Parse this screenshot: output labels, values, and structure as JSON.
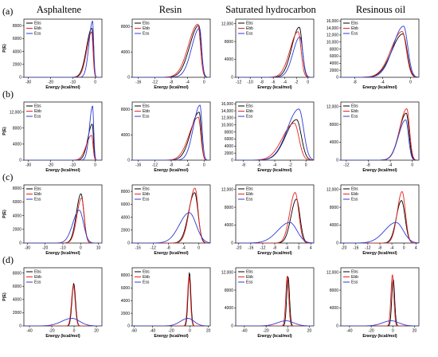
{
  "figure": {
    "column_titles": [
      "Asphaltene",
      "Resin",
      "Saturated hydrocarbon",
      "Resinous oil"
    ],
    "row_labels": [
      "(a)",
      "(b)",
      "(c)",
      "(d)"
    ]
  },
  "chart_data": [
    {
      "type": "line",
      "panel": "a1",
      "xlabel": "Energy (kcal/mol)",
      "ylabel": "P(E)",
      "xticks": [
        -30,
        -20,
        -10,
        0
      ],
      "yticks": [
        0,
        2000,
        4000,
        6000,
        8000
      ],
      "xlim": [
        -32,
        3
      ],
      "ylim": [
        0,
        9000
      ],
      "legend": [
        "Ebs",
        "Ebb",
        "Ess"
      ],
      "colors": [
        "#000000",
        "#e8231e",
        "#2d3bd6"
      ],
      "series": [
        {
          "name": "Ebs",
          "peak_x": -1.5,
          "peak_y": 7600,
          "width_left": 2.4,
          "width_right": 0.6
        },
        {
          "name": "Ebb",
          "peak_x": -1.6,
          "peak_y": 7000,
          "width_left": 2.2,
          "width_right": 0.6
        },
        {
          "name": "Ess",
          "peak_x": -1.2,
          "peak_y": 8700,
          "width_left": 1.6,
          "width_right": 0.5
        }
      ]
    },
    {
      "type": "line",
      "panel": "a2",
      "xlabel": "Energy (kcal/mol)",
      "ylabel": "",
      "xticks": [
        -16,
        -12,
        -8,
        -4,
        0
      ],
      "yticks": [
        0,
        4000,
        8000
      ],
      "xlim": [
        -17.5,
        1.5
      ],
      "ylim": [
        0,
        9200
      ],
      "legend": [
        "Ebs",
        "Ebb",
        "Ess"
      ],
      "colors": [
        "#000000",
        "#e8231e",
        "#2d3bd6"
      ],
      "series": [
        {
          "name": "Ebs",
          "peak_x": -1.3,
          "peak_y": 8200,
          "width_left": 2.2,
          "width_right": 0.6
        },
        {
          "name": "Ebb",
          "peak_x": -1.5,
          "peak_y": 8400,
          "width_left": 2.3,
          "width_right": 0.6
        },
        {
          "name": "Ess",
          "peak_x": -1.1,
          "peak_y": 7800,
          "width_left": 1.9,
          "width_right": 0.5
        }
      ]
    },
    {
      "type": "line",
      "panel": "a3",
      "xlabel": "Energy (kcal/mol)",
      "ylabel": "",
      "xticks": [
        -12,
        -10,
        -8,
        -6,
        -4,
        -2,
        0
      ],
      "yticks": [
        0,
        4000,
        8000,
        12000
      ],
      "xlim": [
        -12.5,
        1
      ],
      "ylim": [
        0,
        13000
      ],
      "legend": [
        "Ebs",
        "Ebb",
        "Ess"
      ],
      "colors": [
        "#000000",
        "#e8231e",
        "#2d3bd6"
      ],
      "series": [
        {
          "name": "Ebs",
          "peak_x": -1.5,
          "peak_y": 11200,
          "width_left": 1.3,
          "width_right": 0.5
        },
        {
          "name": "Ebb",
          "peak_x": -1.7,
          "peak_y": 10200,
          "width_left": 1.4,
          "width_right": 0.5
        },
        {
          "name": "Ess",
          "peak_x": -1.4,
          "peak_y": 9000,
          "width_left": 1.2,
          "width_right": 0.5
        }
      ]
    },
    {
      "type": "line",
      "panel": "a4",
      "xlabel": "Energy (kcal/mol)",
      "ylabel": "",
      "xticks": [
        -8,
        -4,
        0
      ],
      "yticks": [
        0,
        2000,
        4000,
        6000,
        8000,
        10000,
        12000,
        14000,
        16000
      ],
      "xlim": [
        -10,
        1.2
      ],
      "ylim": [
        0,
        16500
      ],
      "legend": [
        "Ebs",
        "Ebb",
        "Ess"
      ],
      "colors": [
        "#000000",
        "#e8231e",
        "#2d3bd6"
      ],
      "series": [
        {
          "name": "Ebs",
          "peak_x": -1.1,
          "peak_y": 12300,
          "width_left": 1.6,
          "width_right": 0.6
        },
        {
          "name": "Ebb",
          "peak_x": -1.2,
          "peak_y": 13000,
          "width_left": 1.6,
          "width_right": 0.6
        },
        {
          "name": "Ess",
          "peak_x": -1.0,
          "peak_y": 14500,
          "width_left": 1.5,
          "width_right": 0.6
        }
      ]
    },
    {
      "type": "line",
      "panel": "b1",
      "xlabel": "Energy (kcal/mol)",
      "ylabel": "P(E)",
      "xticks": [
        -30,
        -20,
        -10,
        0
      ],
      "yticks": [
        0,
        4000,
        8000,
        12000
      ],
      "xlim": [
        -32,
        3
      ],
      "ylim": [
        0,
        14500
      ],
      "legend": [
        "Ebs",
        "Ebb",
        "Ess"
      ],
      "colors": [
        "#000000",
        "#e8231e",
        "#2d3bd6"
      ],
      "series": [
        {
          "name": "Ebs",
          "peak_x": -1.3,
          "peak_y": 9000,
          "width_left": 2.0,
          "width_right": 0.5
        },
        {
          "name": "Ebb",
          "peak_x": -1.6,
          "peak_y": 6200,
          "width_left": 2.4,
          "width_right": 0.6
        },
        {
          "name": "Ess",
          "peak_x": -1.2,
          "peak_y": 13500,
          "width_left": 1.4,
          "width_right": 0.5
        }
      ]
    },
    {
      "type": "line",
      "panel": "b2",
      "xlabel": "Energy (kcal/mol)",
      "ylabel": "",
      "xticks": [
        -16,
        -12,
        -8,
        -4,
        0
      ],
      "yticks": [
        0,
        4000,
        8000
      ],
      "xlim": [
        -17.5,
        1.5
      ],
      "ylim": [
        0,
        9200
      ],
      "legend": [
        "Ebs",
        "Ebb",
        "Ess"
      ],
      "colors": [
        "#000000",
        "#e8231e",
        "#2d3bd6"
      ],
      "series": [
        {
          "name": "Ebs",
          "peak_x": -1.2,
          "peak_y": 7600,
          "width_left": 2.0,
          "width_right": 0.5
        },
        {
          "name": "Ebb",
          "peak_x": -1.4,
          "peak_y": 6800,
          "width_left": 2.2,
          "width_right": 0.6
        },
        {
          "name": "Ess",
          "peak_x": -1.0,
          "peak_y": 8700,
          "width_left": 1.6,
          "width_right": 0.5
        }
      ]
    },
    {
      "type": "line",
      "panel": "b3",
      "xlabel": "Energy (kcal/mol)",
      "ylabel": "",
      "xticks": [
        -8,
        -6,
        -4,
        -2,
        0
      ],
      "yticks": [
        0,
        2000,
        4000,
        6000,
        8000,
        10000,
        12000,
        14000,
        16000
      ],
      "xlim": [
        -9,
        1
      ],
      "ylim": [
        0,
        16500
      ],
      "legend": [
        "Ebs",
        "Ebb",
        "Ess"
      ],
      "colors": [
        "#000000",
        "#e8231e",
        "#2d3bd6"
      ],
      "series": [
        {
          "name": "Ebs",
          "peak_x": -1.2,
          "peak_y": 11500,
          "width_left": 1.4,
          "width_right": 0.6
        },
        {
          "name": "Ebb",
          "peak_x": -1.5,
          "peak_y": 10500,
          "width_left": 1.5,
          "width_right": 0.6
        },
        {
          "name": "Ess",
          "peak_x": -0.9,
          "peak_y": 14500,
          "width_left": 1.5,
          "width_right": 0.6
        }
      ]
    },
    {
      "type": "line",
      "panel": "b4",
      "xlabel": "Energy (kcal/mol)",
      "ylabel": "",
      "xticks": [
        -12,
        -8,
        -4,
        0
      ],
      "yticks": [
        0,
        4000,
        8000,
        12000
      ],
      "xlim": [
        -13,
        1.2
      ],
      "ylim": [
        0,
        13000
      ],
      "legend": [
        "Ebs",
        "Ebb",
        "Ess"
      ],
      "colors": [
        "#000000",
        "#e8231e",
        "#2d3bd6"
      ],
      "series": [
        {
          "name": "Ebs",
          "peak_x": -1.1,
          "peak_y": 10500,
          "width_left": 1.3,
          "width_right": 0.5
        },
        {
          "name": "Ebb",
          "peak_x": -1.0,
          "peak_y": 11500,
          "width_left": 1.3,
          "width_right": 0.5
        },
        {
          "name": "Ess",
          "peak_x": -1.2,
          "peak_y": 9000,
          "width_left": 1.3,
          "width_right": 0.5
        }
      ]
    },
    {
      "type": "line",
      "panel": "c1",
      "xlabel": "Energy (kcal/mol)",
      "ylabel": "P(E)",
      "xticks": [
        -30,
        -20,
        -10,
        0,
        10
      ],
      "yticks": [
        0,
        2000,
        4000,
        6000,
        8000
      ],
      "xlim": [
        -32,
        12
      ],
      "ylim": [
        0,
        8500
      ],
      "legend": [
        "Ebs",
        "Ebb",
        "Ess"
      ],
      "colors": [
        "#000000",
        "#e8231e",
        "#2d3bd6"
      ],
      "series": [
        {
          "name": "Ebs",
          "peak_x": 0.2,
          "peak_y": 7200,
          "width_left": 2.6,
          "width_right": 1.6
        },
        {
          "name": "Ebb",
          "peak_x": 0.5,
          "peak_y": 6600,
          "width_left": 2.6,
          "width_right": 1.5
        },
        {
          "name": "Ess",
          "peak_x": -0.8,
          "peak_y": 4800,
          "width_left": 3.6,
          "width_right": 2.4
        }
      ]
    },
    {
      "type": "line",
      "panel": "c2",
      "xlabel": "Energy (kcal/mol)",
      "ylabel": "",
      "xticks": [
        -16,
        -12,
        -8,
        -4,
        0
      ],
      "yticks": [
        0,
        2000,
        4000,
        6000,
        8000
      ],
      "xlim": [
        -17.5,
        3
      ],
      "ylim": [
        0,
        9000
      ],
      "legend": [
        "Ebs",
        "Ebb",
        "Ess"
      ],
      "colors": [
        "#000000",
        "#e8231e",
        "#2d3bd6"
      ],
      "series": [
        {
          "name": "Ebs",
          "peak_x": -1.1,
          "peak_y": 7800,
          "width_left": 1.6,
          "width_right": 0.9
        },
        {
          "name": "Ebb",
          "peak_x": -1.0,
          "peak_y": 8500,
          "width_left": 1.5,
          "width_right": 0.8
        },
        {
          "name": "Ess",
          "peak_x": -2.5,
          "peak_y": 4700,
          "width_left": 2.6,
          "width_right": 1.8
        }
      ]
    },
    {
      "type": "line",
      "panel": "c3",
      "xlabel": "Energy (kcal/mol)",
      "ylabel": "",
      "xticks": [
        -20,
        -16,
        -12,
        -8,
        -4,
        0,
        4
      ],
      "yticks": [
        0,
        4000,
        8000,
        12000
      ],
      "xlim": [
        -21,
        5
      ],
      "ylim": [
        0,
        13000
      ],
      "legend": [
        "Ebs",
        "Ebb",
        "Ess"
      ],
      "colors": [
        "#000000",
        "#e8231e",
        "#2d3bd6"
      ],
      "series": [
        {
          "name": "Ebs",
          "peak_x": -0.8,
          "peak_y": 9800,
          "width_left": 1.8,
          "width_right": 1.2
        },
        {
          "name": "Ebb",
          "peak_x": -1.2,
          "peak_y": 11300,
          "width_left": 1.8,
          "width_right": 1.2
        },
        {
          "name": "Ess",
          "peak_x": -3.0,
          "peak_y": 4600,
          "width_left": 4.0,
          "width_right": 2.4
        }
      ]
    },
    {
      "type": "line",
      "panel": "c4",
      "xlabel": "Energy (kcal/mol)",
      "ylabel": "",
      "xticks": [
        -20,
        -16,
        -12,
        -8,
        -4,
        0,
        4
      ],
      "yticks": [
        0,
        4000,
        8000,
        12000
      ],
      "xlim": [
        -21,
        5
      ],
      "ylim": [
        0,
        13000
      ],
      "legend": [
        "Ebs",
        "Ebb",
        "Ess"
      ],
      "colors": [
        "#000000",
        "#e8231e",
        "#2d3bd6"
      ],
      "series": [
        {
          "name": "Ebs",
          "peak_x": -0.8,
          "peak_y": 9500,
          "width_left": 1.7,
          "width_right": 1.2
        },
        {
          "name": "Ebb",
          "peak_x": -0.6,
          "peak_y": 11500,
          "width_left": 1.6,
          "width_right": 1.1
        },
        {
          "name": "Ess",
          "peak_x": -2.6,
          "peak_y": 4600,
          "width_left": 3.8,
          "width_right": 2.4
        }
      ]
    },
    {
      "type": "line",
      "panel": "d1",
      "xlabel": "Energy (kcal/mol)",
      "ylabel": "P(E)",
      "xticks": [
        -40,
        -20,
        0,
        20
      ],
      "yticks": [
        0,
        2000,
        4000,
        6000,
        8000
      ],
      "xlim": [
        -45,
        25
      ],
      "ylim": [
        0,
        8800
      ],
      "legend": [
        "Ebs",
        "Ebb",
        "Ess"
      ],
      "colors": [
        "#000000",
        "#e8231e",
        "#2d3bd6"
      ],
      "series": [
        {
          "name": "Ebs",
          "peak_x": -0.3,
          "peak_y": 6400,
          "width_left": 1.6,
          "width_right": 1.6
        },
        {
          "name": "Ebb",
          "peak_x": -0.6,
          "peak_y": 6100,
          "width_left": 1.7,
          "width_right": 1.6
        },
        {
          "name": "Ess",
          "peak_x": -2.0,
          "peak_y": 1150,
          "width_left": 9.0,
          "width_right": 7.0
        }
      ]
    },
    {
      "type": "line",
      "panel": "d2",
      "xlabel": "Energy (kcal/mol)",
      "ylabel": "",
      "xticks": [
        -60,
        -40,
        -20,
        0,
        20
      ],
      "yticks": [
        0,
        2000,
        4000,
        6000,
        8000
      ],
      "xlim": [
        -62,
        22
      ],
      "ylim": [
        0,
        9200
      ],
      "legend": [
        "Ebs",
        "Ebb",
        "Ess"
      ],
      "colors": [
        "#000000",
        "#e8231e",
        "#2d3bd6"
      ],
      "series": [
        {
          "name": "Ebs",
          "peak_x": -0.4,
          "peak_y": 8400,
          "width_left": 1.5,
          "width_right": 1.5
        },
        {
          "name": "Ebb",
          "peak_x": -0.8,
          "peak_y": 7900,
          "width_left": 1.6,
          "width_right": 1.5
        },
        {
          "name": "Ess",
          "peak_x": -2.0,
          "peak_y": 1200,
          "width_left": 8.0,
          "width_right": 6.5
        }
      ]
    },
    {
      "type": "line",
      "panel": "d3",
      "xlabel": "Energy (kcal/mol)",
      "ylabel": "",
      "xticks": [
        -40,
        -20,
        0,
        20
      ],
      "yticks": [
        0,
        4000,
        8000,
        12000
      ],
      "xlim": [
        -48,
        24
      ],
      "ylim": [
        0,
        13000
      ],
      "legend": [
        "Ebs",
        "Ebb",
        "Ess"
      ],
      "colors": [
        "#000000",
        "#e8231e",
        "#2d3bd6"
      ],
      "series": [
        {
          "name": "Ebs",
          "peak_x": 0.3,
          "peak_y": 11000,
          "width_left": 1.3,
          "width_right": 1.3
        },
        {
          "name": "Ebb",
          "peak_x": -0.4,
          "peak_y": 11200,
          "width_left": 1.4,
          "width_right": 1.3
        },
        {
          "name": "Ess",
          "peak_x": -1.5,
          "peak_y": 1150,
          "width_left": 8.0,
          "width_right": 7.0
        }
      ]
    },
    {
      "type": "line",
      "panel": "d4",
      "xlabel": "Energy (kcal/mol)",
      "ylabel": "",
      "xticks": [
        -40,
        -20,
        0,
        20
      ],
      "yticks": [
        0,
        4000,
        8000,
        12000
      ],
      "xlim": [
        -48,
        24
      ],
      "ylim": [
        0,
        13000
      ],
      "legend": [
        "Ebs",
        "Ebb",
        "Ess"
      ],
      "colors": [
        "#000000",
        "#e8231e",
        "#2d3bd6"
      ],
      "series": [
        {
          "name": "Ebs",
          "peak_x": 0.3,
          "peak_y": 10500,
          "width_left": 1.3,
          "width_right": 1.3
        },
        {
          "name": "Ebb",
          "peak_x": -0.4,
          "peak_y": 11500,
          "width_left": 1.4,
          "width_right": 1.3
        },
        {
          "name": "Ess",
          "peak_x": -1.5,
          "peak_y": 1150,
          "width_left": 8.0,
          "width_right": 7.0
        }
      ]
    }
  ]
}
